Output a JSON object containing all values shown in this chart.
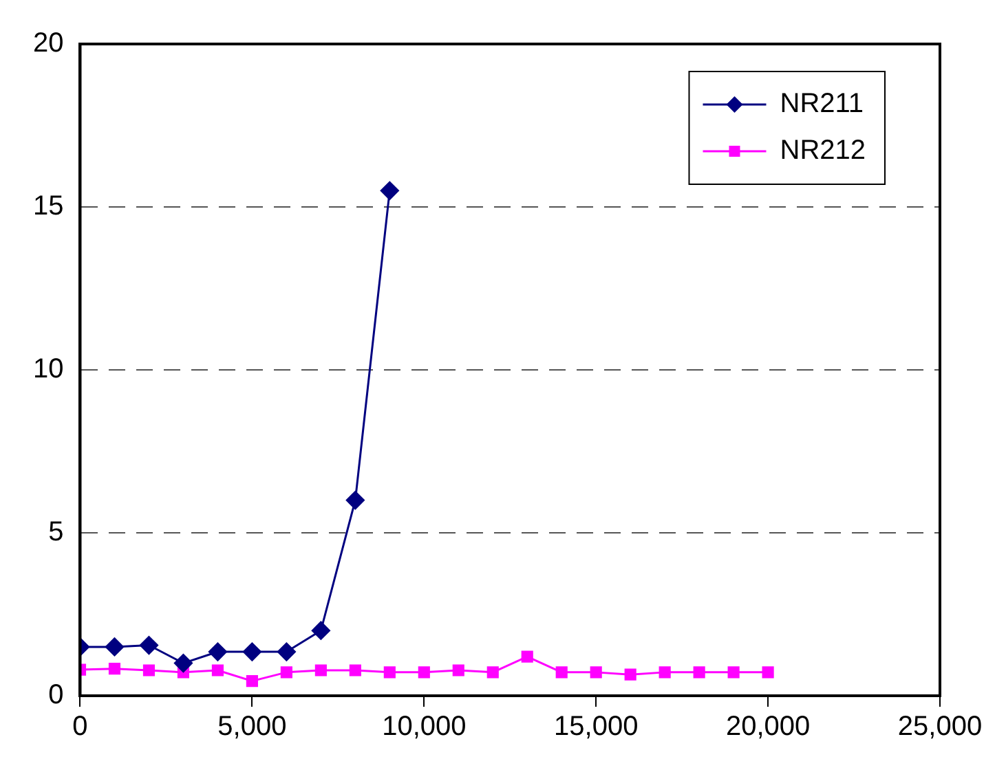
{
  "chart_data": {
    "type": "line",
    "xlim": [
      0,
      25000
    ],
    "xticks": [
      {
        "value": 0,
        "label": "0"
      },
      {
        "value": 5000,
        "label": "5,000"
      },
      {
        "value": 10000,
        "label": "10,000"
      },
      {
        "value": 15000,
        "label": "15,000"
      },
      {
        "value": 20000,
        "label": "20,000"
      },
      {
        "value": 25000,
        "label": "25,000"
      }
    ],
    "ylim": [
      0,
      20
    ],
    "yticks": [
      0,
      5,
      10,
      15,
      20
    ],
    "grid": "y",
    "legend": "top right",
    "series": [
      {
        "name": "NR211",
        "color": "#000080",
        "marker": "diamond",
        "x": [
          0,
          1000,
          2000,
          3000,
          4000,
          5000,
          6000,
          7000,
          8000,
          9000
        ],
        "values": [
          1.5,
          1.5,
          1.55,
          1.0,
          1.35,
          1.35,
          1.35,
          2.0,
          6.0,
          15.5
        ]
      },
      {
        "name": "NR212",
        "color": "#ff00ff",
        "marker": "square",
        "x": [
          0,
          1000,
          2000,
          3000,
          4000,
          5000,
          6000,
          7000,
          8000,
          9000,
          10000,
          11000,
          12000,
          13000,
          14000,
          15000,
          16000,
          17000,
          18000,
          19000,
          20000
        ],
        "values": [
          0.8,
          0.83,
          0.78,
          0.72,
          0.78,
          0.45,
          0.72,
          0.78,
          0.78,
          0.72,
          0.72,
          0.78,
          0.72,
          1.2,
          0.72,
          0.72,
          0.65,
          0.72,
          0.72,
          0.72,
          0.72
        ]
      }
    ]
  }
}
